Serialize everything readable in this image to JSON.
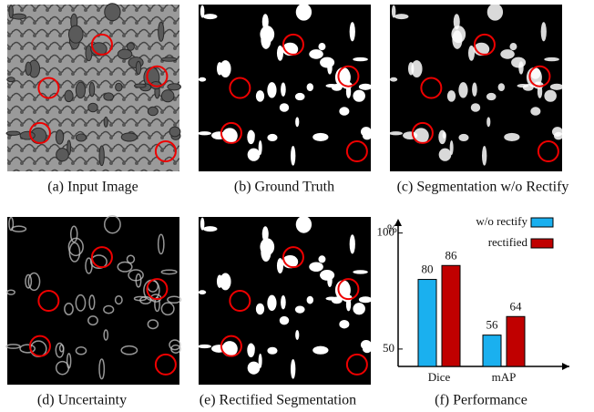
{
  "panels": [
    {
      "caption": "(a) Input Image"
    },
    {
      "caption": "(b) Ground Truth"
    },
    {
      "caption": "(c) Segmentation w/o Rectify"
    },
    {
      "caption": "(d) Uncertainty"
    },
    {
      "caption": "(e) Rectified Segmentation"
    }
  ],
  "chart_data": {
    "type": "bar",
    "title": "(f) Performance",
    "y_label": "%",
    "categories": [
      "Dice",
      "mAP"
    ],
    "series": [
      {
        "name": "w/o rectify",
        "color": "#1ab0ef",
        "values": [
          80,
          56
        ]
      },
      {
        "name": "rectified",
        "color": "#c00000",
        "values": [
          86,
          64
        ]
      }
    ],
    "ylim": [
      42.5,
      103
    ],
    "yticks": [
      50,
      100
    ],
    "legend": "upper right"
  }
}
